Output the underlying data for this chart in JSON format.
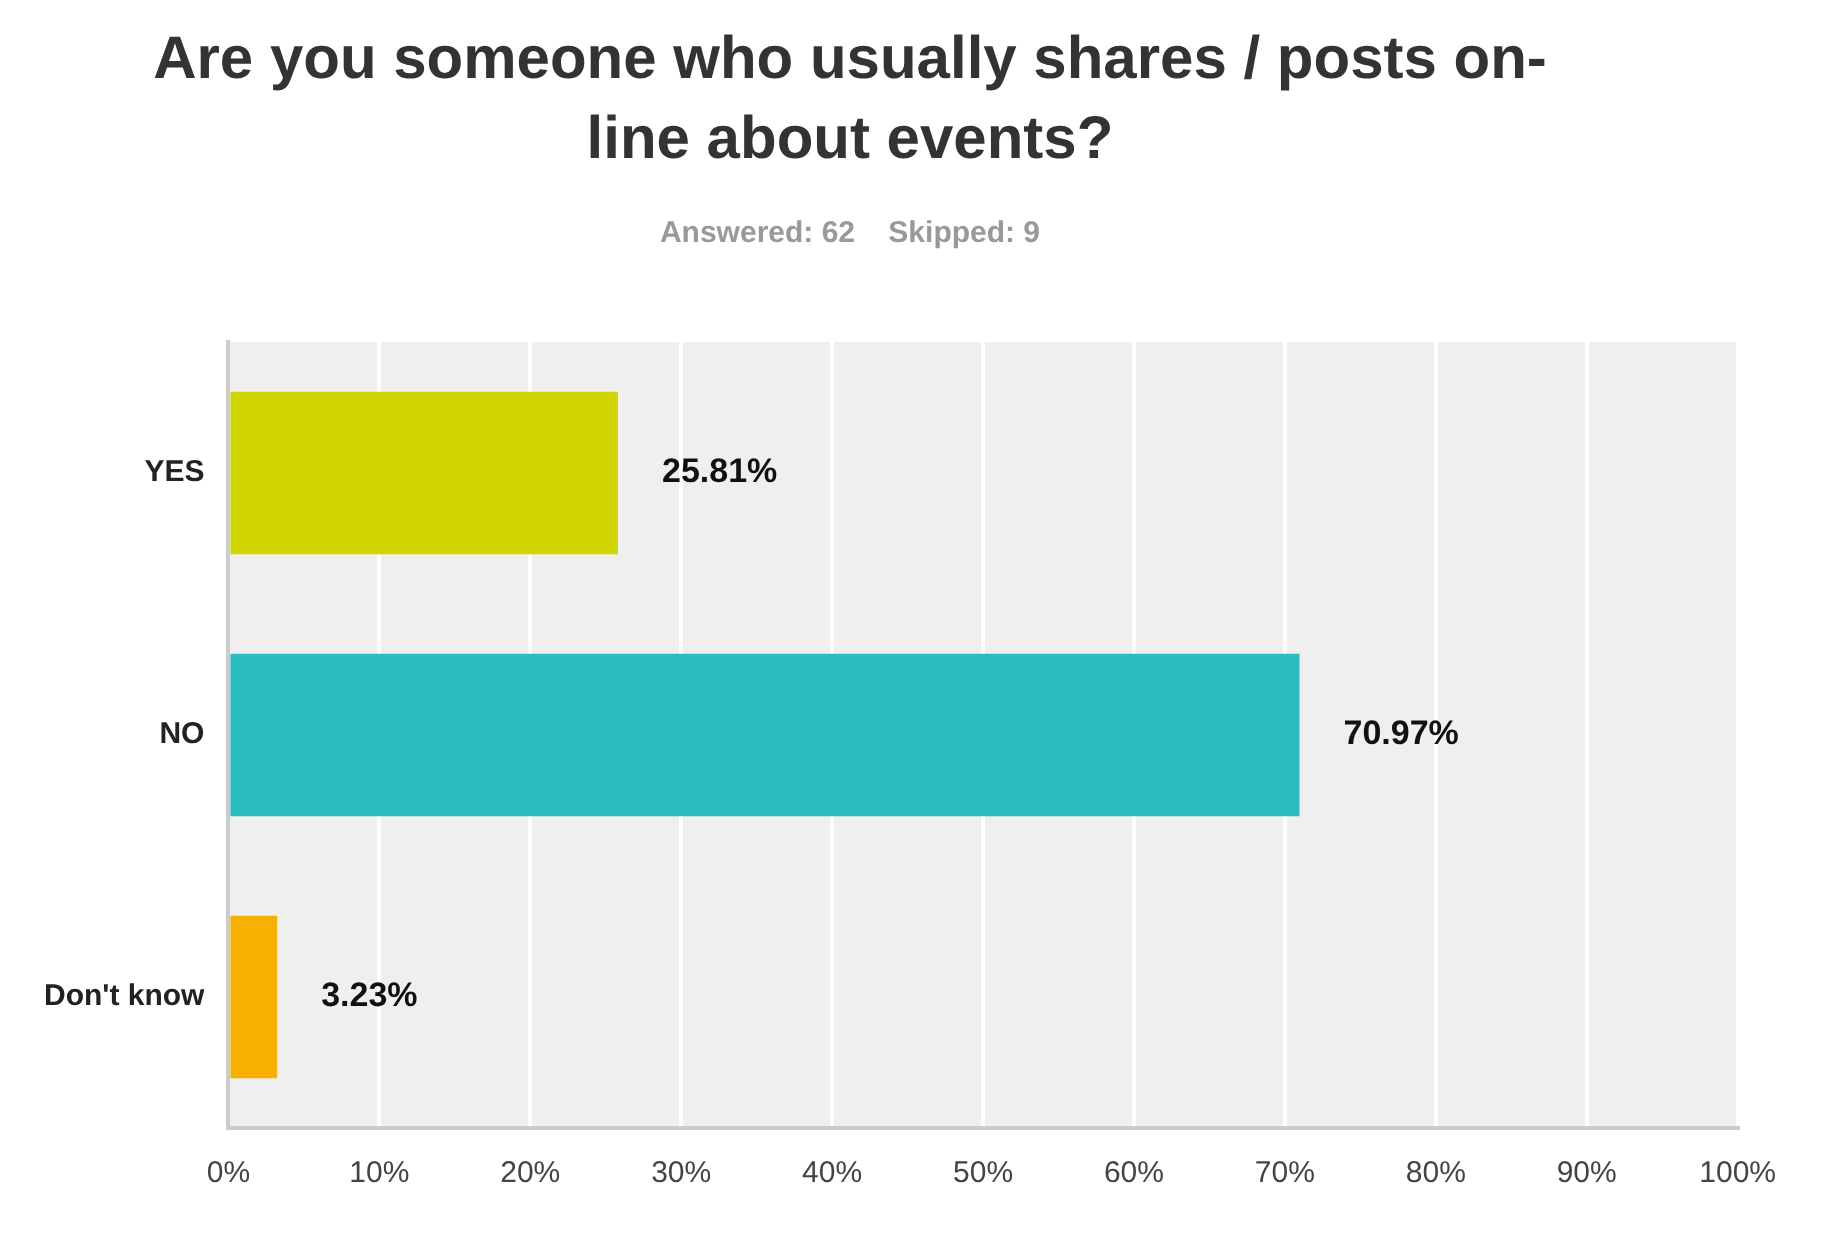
{
  "chart_data": {
    "type": "bar",
    "orientation": "horizontal",
    "title": "Are you someone who usually shares / posts on-line about events?",
    "subtitle": "Answered: 62    Skipped: 9",
    "categories": [
      "YES",
      "NO",
      "Don't know"
    ],
    "values": [
      25.81,
      70.97,
      3.23
    ],
    "colors": [
      "#d1d600",
      "#2abcc1",
      "#f7b000"
    ],
    "value_labels": [
      "25.81%",
      "70.97%",
      "3.23%"
    ],
    "xlim": [
      0,
      100
    ],
    "xticks": [
      {
        "value": 0,
        "label": "0%"
      },
      {
        "value": 10,
        "label": "10%"
      },
      {
        "value": 20,
        "label": "20%"
      },
      {
        "value": 30,
        "label": "30%"
      },
      {
        "value": 40,
        "label": "40%"
      },
      {
        "value": 50,
        "label": "50%"
      },
      {
        "value": 60,
        "label": "60%"
      },
      {
        "value": 70,
        "label": "70%"
      },
      {
        "value": 80,
        "label": "80%"
      },
      {
        "value": 90,
        "label": "90%"
      },
      {
        "value": 100,
        "label": "100%"
      }
    ],
    "grid": "x",
    "legend": false
  }
}
